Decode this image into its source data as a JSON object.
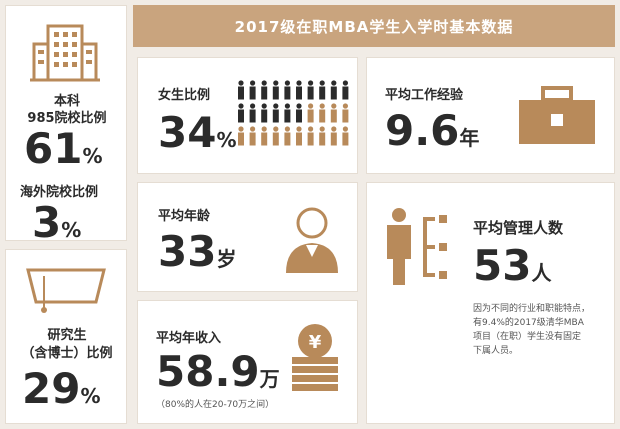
{
  "title": "2017级在职MBA学生入学时基本数据",
  "left_top": {
    "label1a": "本科",
    "label1b": "985院校比例",
    "value1": "61",
    "unit1": "%",
    "label2": "海外院校比例",
    "value2": "3",
    "unit2": "%"
  },
  "left_bottom": {
    "label_a": "研究生",
    "label_b": "（含博士）比例",
    "value": "29",
    "unit": "%"
  },
  "female": {
    "label": "女生比例",
    "value": "34",
    "unit": "%"
  },
  "experience": {
    "label": "平均工作经验",
    "value": "9.6",
    "unit": "年"
  },
  "age": {
    "label": "平均年龄",
    "value": "33",
    "unit": "岁"
  },
  "income": {
    "label": "平均年收入",
    "value": "58.9",
    "unit": "万",
    "note": "（80%的人在20-70万之间）"
  },
  "managed": {
    "label": "平均管理人数",
    "value": "53",
    "unit": "人",
    "note1": "因为不同的行业和职能特点，",
    "note2": "有9.4%的2017级清华MBA",
    "note3": "项目（在职）学生没有固定",
    "note4": "下属人员。"
  },
  "colors": {
    "accent": "#c9a47e",
    "icon": "#b88a5a",
    "text": "#2b2b2b"
  }
}
